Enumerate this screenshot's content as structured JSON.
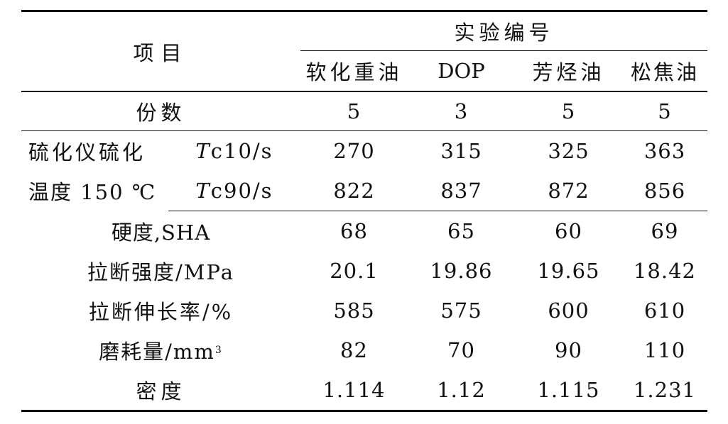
{
  "header": {
    "item_label": "项目",
    "group_label": "实验编号",
    "columns": [
      "软化重油",
      "DOP",
      "芳烃油",
      "松焦油"
    ]
  },
  "rows": [
    {
      "label": "份数",
      "values": [
        "5",
        "3",
        "5",
        "5"
      ]
    },
    {
      "group_label_line1": "硫化仪硫化",
      "group_label_line2": "温度 150 ℃",
      "sub_rows": [
        {
          "sub_var": "T",
          "sub_rest": "c10/s",
          "values": [
            "270",
            "315",
            "325",
            "363"
          ]
        },
        {
          "sub_var": "T",
          "sub_rest": "c90/s",
          "values": [
            "822",
            "837",
            "872",
            "856"
          ]
        }
      ]
    },
    {
      "label": "硬度,SHA",
      "values": [
        "68",
        "65",
        "60",
        "69"
      ]
    },
    {
      "label": "拉断强度/MPa",
      "values": [
        "20.1",
        "19.86",
        "19.65",
        "18.42"
      ]
    },
    {
      "label": "拉断伸长率/%",
      "values": [
        "585",
        "575",
        "600",
        "610"
      ]
    },
    {
      "label_main": "磨耗量/mm",
      "label_sup": "3",
      "values": [
        "82",
        "70",
        "90",
        "110"
      ]
    },
    {
      "label": "密度",
      "values": [
        "1.114",
        "1.12",
        "1.115",
        "1.231"
      ]
    }
  ]
}
